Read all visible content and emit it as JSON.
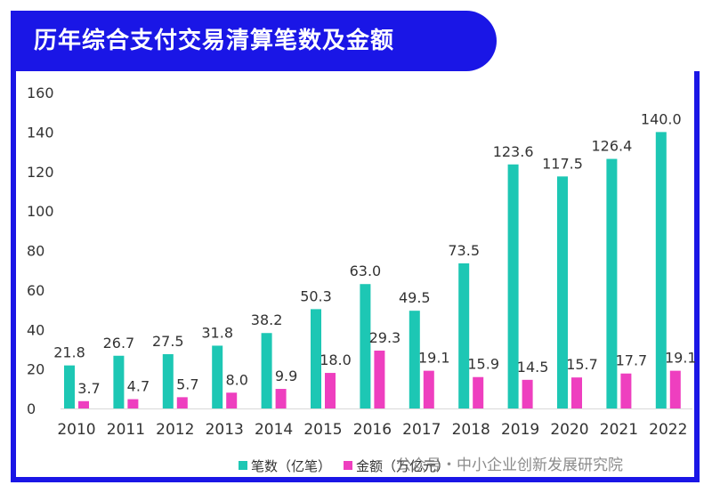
{
  "title": "历年综合支付交易清算笔数及金额",
  "watermark": "公众号・中小企业创新发展研究院",
  "colors": {
    "series1": "#1dc7b4",
    "series2": "#ee3fbf",
    "accent": "#1a16e6"
  },
  "chart_data": {
    "type": "bar",
    "categories": [
      "2010",
      "2011",
      "2012",
      "2013",
      "2014",
      "2015",
      "2016",
      "2017",
      "2018",
      "2019",
      "2020",
      "2021",
      "2022"
    ],
    "series": [
      {
        "name": "笔数（亿笔）",
        "values": [
          21.8,
          26.7,
          27.5,
          31.8,
          38.2,
          50.3,
          63.0,
          49.5,
          73.5,
          123.6,
          117.5,
          126.4,
          140.0
        ]
      },
      {
        "name": "金额（万亿元）",
        "values": [
          3.7,
          4.7,
          5.7,
          8.0,
          9.9,
          18.0,
          29.3,
          19.1,
          15.9,
          14.5,
          15.7,
          17.7,
          19.1
        ]
      }
    ],
    "yticks": [
      0,
      20,
      40,
      60,
      80,
      100,
      120,
      140,
      160
    ],
    "ylim": [
      0,
      160
    ],
    "legend_position": "bottom",
    "grid": false
  }
}
